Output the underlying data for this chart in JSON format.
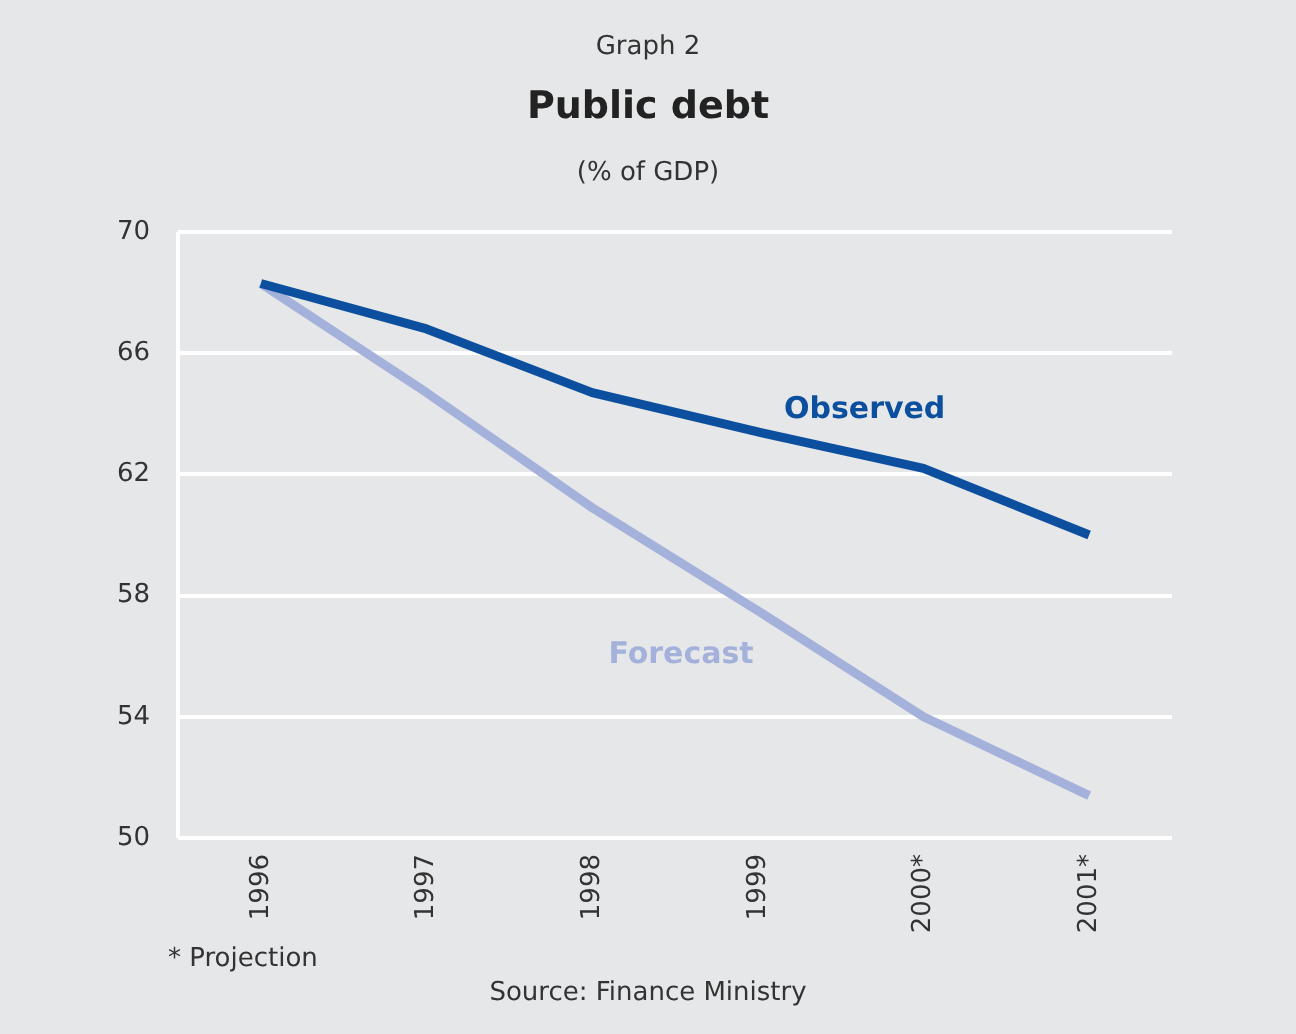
{
  "chart_data": {
    "type": "line",
    "title": "Public debt",
    "subtitle": "(% of GDP)",
    "annotations": [
      "Graph 2",
      "* Projection",
      "Source: Finance Ministry"
    ],
    "categories": [
      "1996",
      "1997",
      "1998",
      "1999",
      "2000*",
      "2001*"
    ],
    "series": [
      {
        "name": "Observed",
        "color": "#0b4f9e",
        "values": [
          68.3,
          66.8,
          64.7,
          63.4,
          62.2,
          60.0
        ]
      },
      {
        "name": "Forecast",
        "color": "#a4b1db",
        "values": [
          68.3,
          64.7,
          60.9,
          57.5,
          54.0,
          51.4
        ]
      }
    ],
    "ylim": [
      50,
      70
    ],
    "yticks": [
      50,
      54,
      58,
      62,
      66,
      70
    ],
    "grid": "y",
    "legend": false,
    "line_style": "solid"
  }
}
